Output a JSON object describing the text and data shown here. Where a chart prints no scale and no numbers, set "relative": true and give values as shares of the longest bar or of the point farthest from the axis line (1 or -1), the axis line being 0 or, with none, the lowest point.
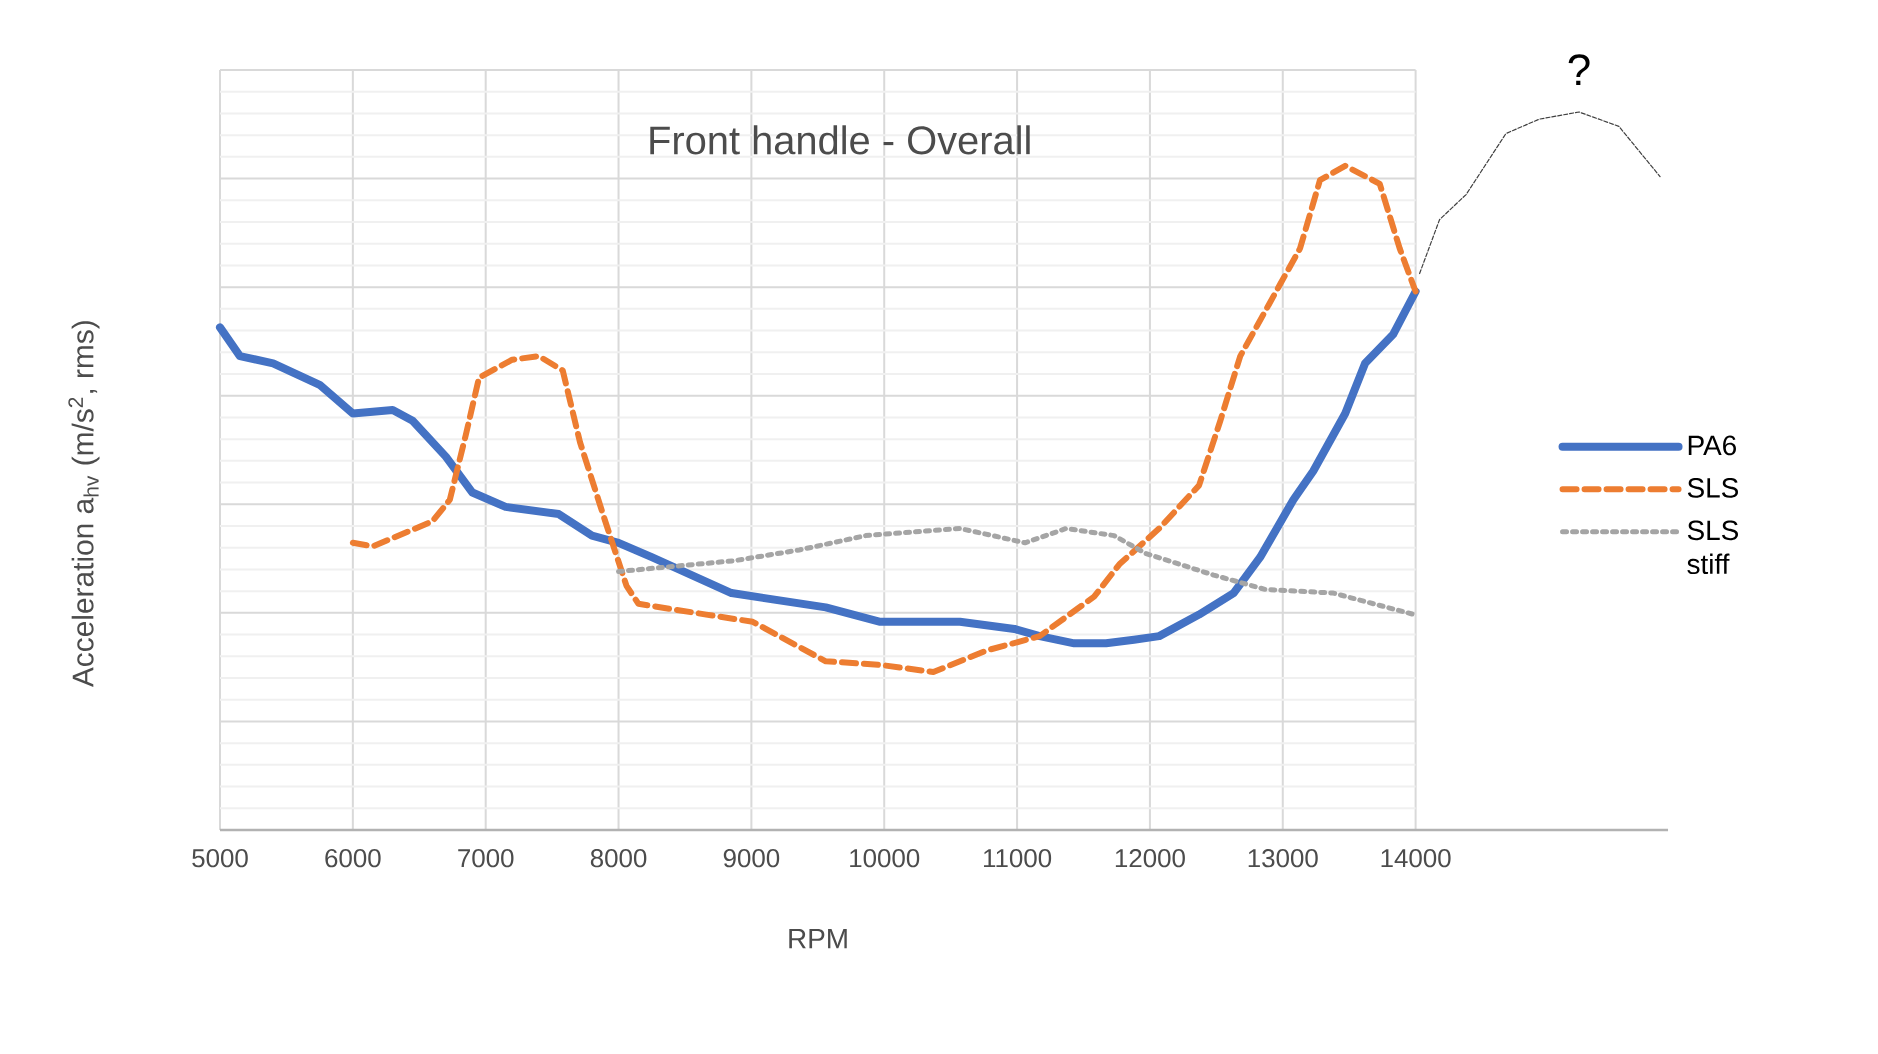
{
  "chart_data": {
    "type": "line",
    "title": "Front handle - Overall",
    "xlabel": "RPM",
    "ylabel": "Acceleration a$_{hv}$ (m/s$^{2}$, rms)",
    "relative": true,
    "xlim": [
      5000,
      15900
    ],
    "xticks": [
      5000,
      6000,
      7000,
      8000,
      9000,
      10000,
      11000,
      12000,
      13000,
      14000
    ],
    "grid": true,
    "legend": "right",
    "annotations": [
      "?"
    ],
    "series": [
      {
        "name": "PA6",
        "color": "#4472c4",
        "line_style": "solid",
        "x": [
          5000,
          5150,
          5400,
          5750,
          6000,
          6300,
          6450,
          6700,
          6900,
          7150,
          7550,
          7800,
          8000,
          8250,
          8850,
          9560,
          9970,
          10570,
          10980,
          11170,
          11430,
          11670,
          11880,
          12070,
          12370,
          12630,
          12830,
          13080,
          13230,
          13470,
          13620,
          13830,
          14000
        ],
        "values": [
          0.7,
          0.66,
          0.65,
          0.62,
          0.58,
          0.585,
          0.57,
          0.52,
          0.47,
          0.45,
          0.44,
          0.41,
          0.4,
          0.38,
          0.33,
          0.31,
          0.29,
          0.29,
          0.28,
          0.27,
          0.26,
          0.26,
          0.265,
          0.27,
          0.3,
          0.33,
          0.38,
          0.46,
          0.5,
          0.58,
          0.65,
          0.69,
          0.75
        ]
      },
      {
        "name": "SLS",
        "color": "#ed7d31",
        "line_style": "dashed",
        "x": [
          6000,
          6150,
          6600,
          6730,
          6850,
          6950,
          7200,
          7400,
          7580,
          7710,
          7900,
          8060,
          8150,
          8660,
          9010,
          9360,
          9560,
          9970,
          10370,
          10770,
          11170,
          11580,
          11770,
          12070,
          12370,
          12530,
          12680,
          12980,
          13130,
          13280,
          13470,
          13730,
          13880,
          14000
        ],
        "values": [
          0.4,
          0.395,
          0.43,
          0.46,
          0.55,
          0.63,
          0.655,
          0.66,
          0.64,
          0.54,
          0.43,
          0.34,
          0.315,
          0.3,
          0.29,
          0.255,
          0.235,
          0.23,
          0.22,
          0.25,
          0.27,
          0.325,
          0.37,
          0.42,
          0.48,
          0.57,
          0.66,
          0.76,
          0.81,
          0.905,
          0.925,
          0.9,
          0.81,
          0.75
        ]
      },
      {
        "name": "SLS stiff",
        "color": "#a5a5a5",
        "line_style": "dotted",
        "x": [
          8000,
          8870,
          9360,
          9860,
          10570,
          11060,
          11370,
          11730,
          11970,
          12480,
          12870,
          13380,
          13990
        ],
        "values": [
          0.36,
          0.375,
          0.39,
          0.41,
          0.42,
          0.4,
          0.42,
          0.41,
          0.385,
          0.355,
          0.335,
          0.33,
          0.3
        ]
      },
      {
        "color": "#404040",
        "line_style": "dashed",
        "x": [
          14030,
          14180,
          14380,
          14680,
          14930,
          15230,
          15530,
          15840
        ],
        "values": [
          0.775,
          0.85,
          0.885,
          0.97,
          0.99,
          1.0,
          0.98,
          0.91
        ]
      }
    ]
  }
}
